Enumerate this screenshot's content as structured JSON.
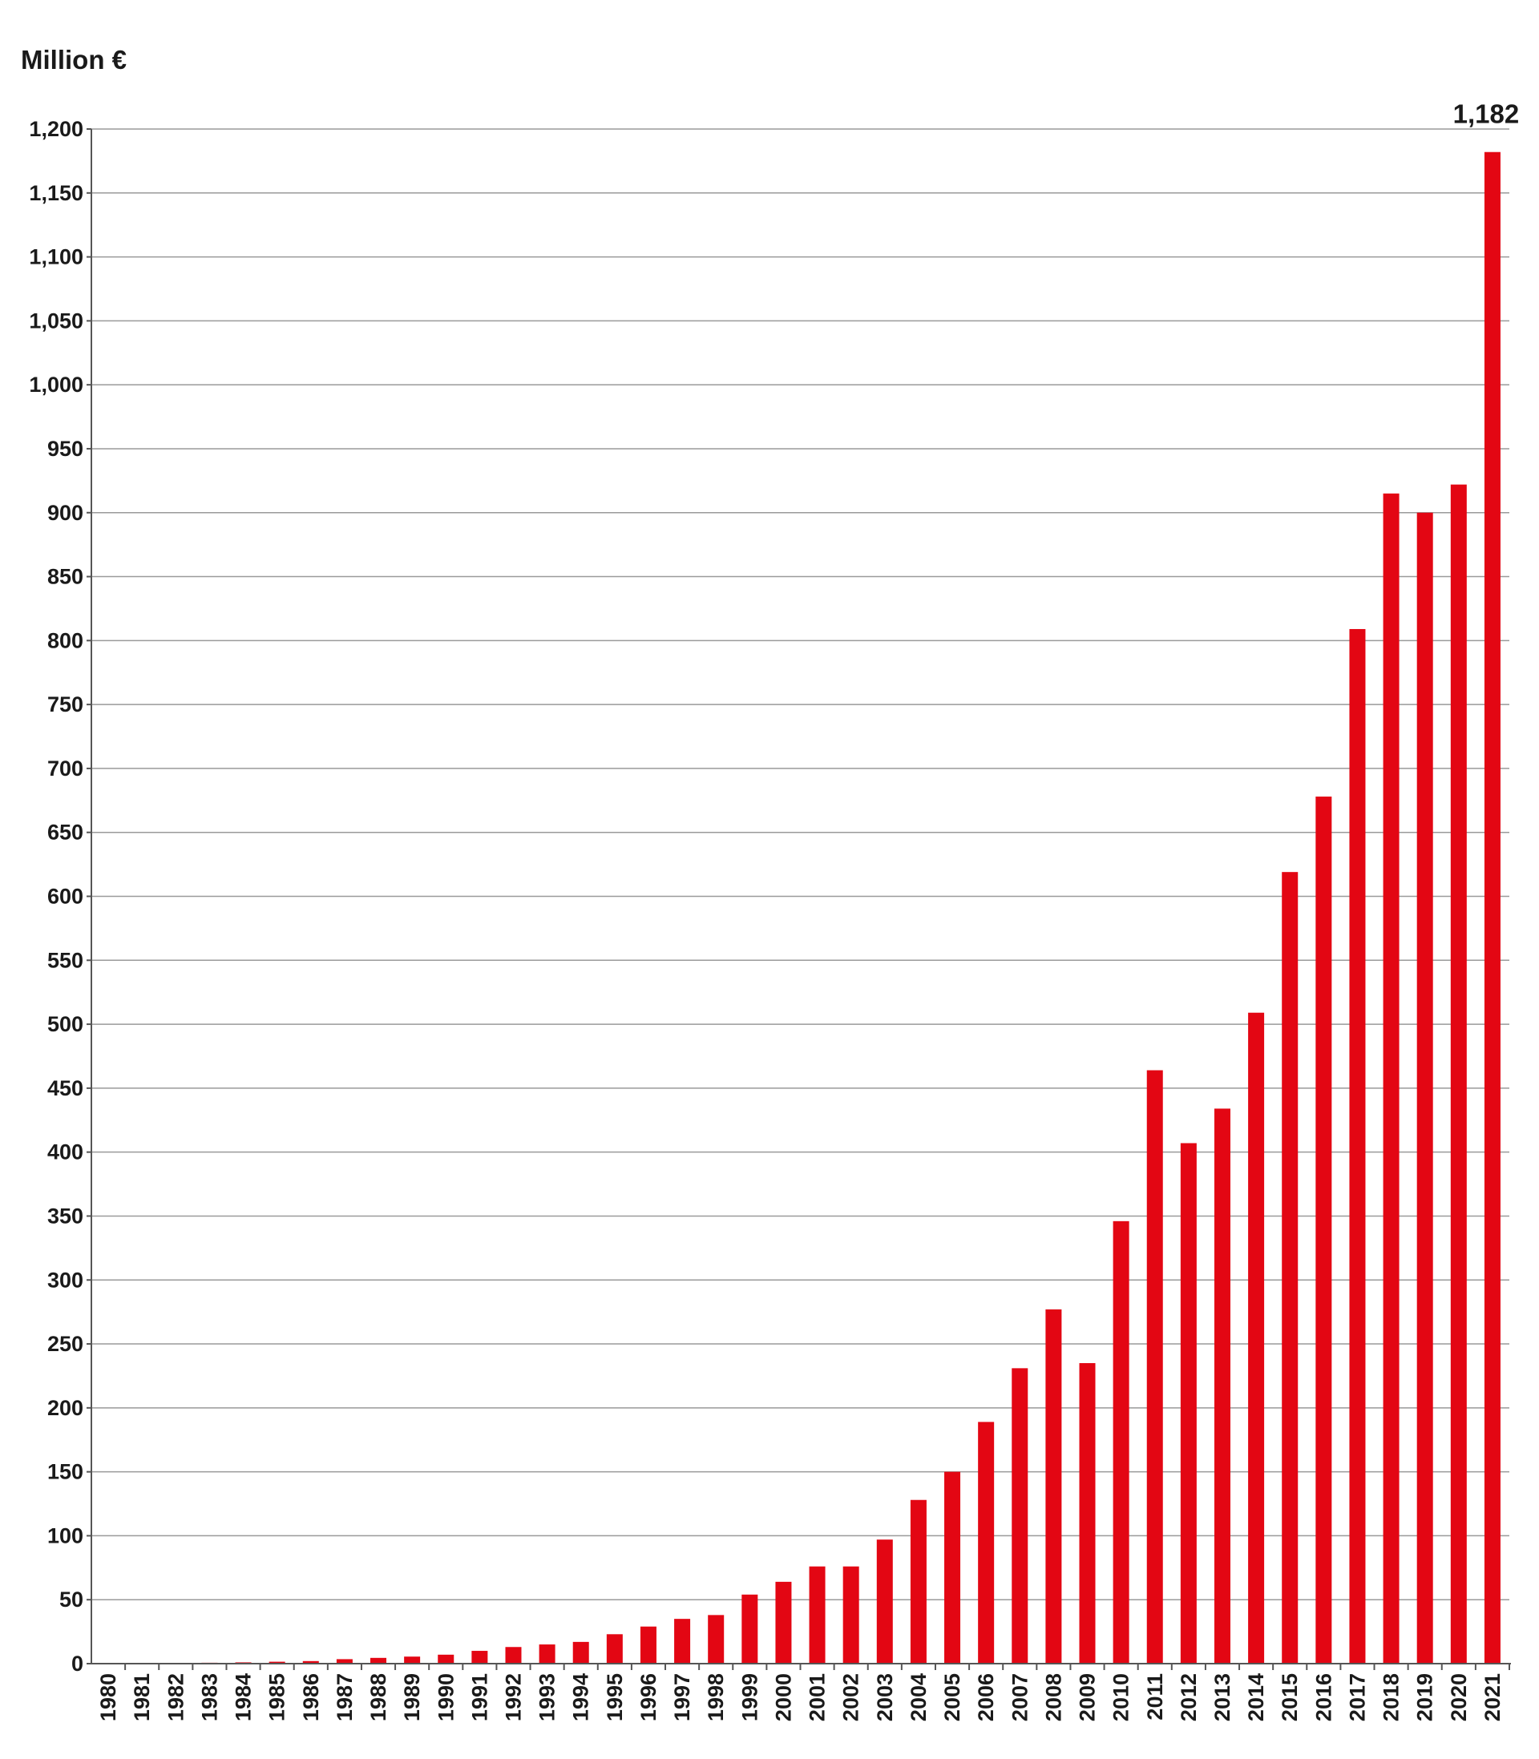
{
  "chart_data": {
    "type": "bar",
    "ylabel": "Million €",
    "ylim": [
      0,
      1200
    ],
    "yticks": [
      0,
      50,
      100,
      150,
      200,
      250,
      300,
      350,
      400,
      450,
      500,
      550,
      600,
      650,
      700,
      750,
      800,
      850,
      900,
      950,
      1000,
      1050,
      1100,
      1150,
      1200
    ],
    "ytick_labels": [
      "0",
      "50",
      "100",
      "150",
      "200",
      "250",
      "300",
      "350",
      "400",
      "450",
      "500",
      "550",
      "600",
      "650",
      "700",
      "750",
      "800",
      "850",
      "900",
      "950",
      "1,000",
      "1,050",
      "1,100",
      "1,150",
      "1,200"
    ],
    "grid": true,
    "color": "#e30613",
    "categories": [
      "1980",
      "1981",
      "1982",
      "1983",
      "1984",
      "1985",
      "1986",
      "1987",
      "1988",
      "1989",
      "1990",
      "1991",
      "1992",
      "1993",
      "1994",
      "1995",
      "1996",
      "1997",
      "1998",
      "1999",
      "2000",
      "2001",
      "2002",
      "2003",
      "2004",
      "2005",
      "2006",
      "2007",
      "2008",
      "2009",
      "2010",
      "2011",
      "2012",
      "2013",
      "2014",
      "2015",
      "2016",
      "2017",
      "2018",
      "2019",
      "2020",
      "2021"
    ],
    "values": [
      0,
      0.3,
      0.5,
      0.7,
      1,
      1.5,
      2,
      3.5,
      4.5,
      5.5,
      7,
      10,
      13,
      15,
      17,
      23,
      29,
      35,
      38,
      54,
      64,
      76,
      76,
      97,
      128,
      150,
      189,
      231,
      277,
      235,
      346,
      464,
      407,
      434,
      509,
      619,
      678,
      809,
      915,
      900,
      922,
      1182
    ],
    "data_labels": [
      {
        "category": "2021",
        "text": "1,182"
      }
    ]
  }
}
